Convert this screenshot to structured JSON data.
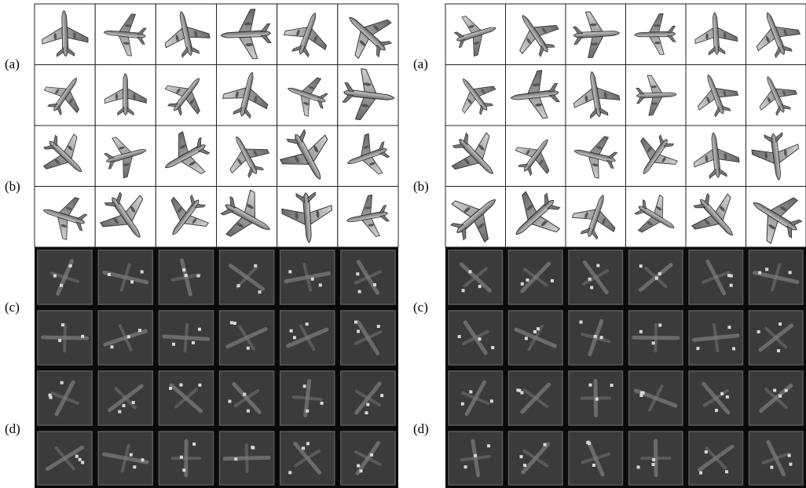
{
  "panels": [
    {
      "labels": [
        "(a)",
        "(b)",
        "(c)",
        "(d)"
      ]
    },
    {
      "labels": [
        "(a)",
        "(b)",
        "(c)",
        "(d)"
      ]
    }
  ]
}
